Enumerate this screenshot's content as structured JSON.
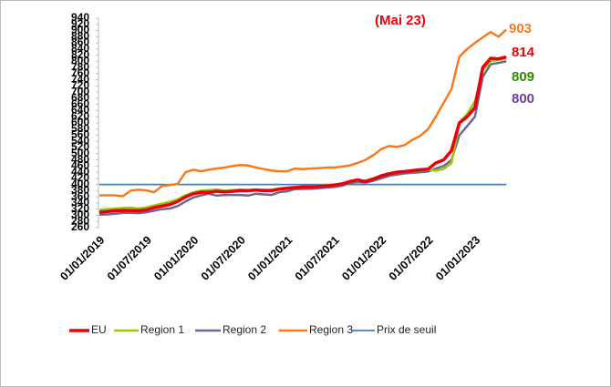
{
  "chart_data": {
    "type": "line",
    "categories": [
      "01/01/2019",
      null,
      null,
      null,
      null,
      null,
      "01/07/2019",
      null,
      null,
      null,
      null,
      null,
      "01/01/2020",
      null,
      null,
      null,
      null,
      null,
      "01/07/2020",
      null,
      null,
      null,
      null,
      null,
      "01/01/2021",
      null,
      null,
      null,
      null,
      null,
      "01/07/2021",
      null,
      null,
      null,
      null,
      null,
      "01/01/2022",
      null,
      null,
      null,
      null,
      null,
      "01/07/2022",
      null,
      null,
      null,
      null,
      null,
      "01/01/2023",
      null,
      null,
      null,
      null
    ],
    "series": [
      {
        "name": "EU",
        "color": "#e8000b",
        "width": 3.5,
        "values": [
          310,
          312,
          315,
          316,
          316,
          315,
          318,
          325,
          330,
          335,
          345,
          360,
          370,
          375,
          375,
          378,
          376,
          378,
          380,
          380,
          382,
          380,
          380,
          385,
          388,
          390,
          392,
          392,
          394,
          395,
          398,
          402,
          410,
          415,
          410,
          418,
          428,
          435,
          440,
          442,
          445,
          448,
          450,
          470,
          480,
          510,
          600,
          620,
          650,
          780,
          810,
          808,
          814
        ]
      },
      {
        "name": "Region 1",
        "color": "#99cc00",
        "width": 2.5,
        "values": [
          318,
          320,
          322,
          324,
          325,
          322,
          326,
          332,
          338,
          344,
          352,
          365,
          375,
          380,
          382,
          384,
          380,
          382,
          384,
          382,
          384,
          383,
          383,
          387,
          390,
          392,
          394,
          394,
          396,
          397,
          400,
          404,
          408,
          412,
          412,
          420,
          430,
          436,
          440,
          442,
          444,
          446,
          448,
          445,
          450,
          470,
          600,
          630,
          670,
          770,
          800,
          805,
          809
        ]
      },
      {
        "name": "Region 2",
        "color": "#6f6596",
        "width": 2.5,
        "values": [
          302,
          303,
          305,
          308,
          308,
          307,
          310,
          315,
          320,
          322,
          330,
          345,
          358,
          365,
          370,
          364,
          366,
          366,
          366,
          364,
          370,
          368,
          366,
          375,
          378,
          385,
          386,
          386,
          388,
          390,
          392,
          396,
          404,
          408,
          406,
          412,
          420,
          428,
          432,
          436,
          438,
          440,
          442,
          452,
          460,
          480,
          560,
          590,
          620,
          750,
          790,
          795,
          800
        ]
      },
      {
        "name": "Region 3",
        "color": "#f47b20",
        "width": 2.5,
        "values": [
          365,
          365,
          365,
          362,
          380,
          383,
          381,
          375,
          395,
          398,
          402,
          440,
          448,
          443,
          448,
          452,
          455,
          460,
          463,
          462,
          455,
          450,
          445,
          443,
          443,
          452,
          450,
          452,
          453,
          455,
          455,
          458,
          462,
          470,
          480,
          495,
          515,
          525,
          522,
          528,
          545,
          558,
          580,
          620,
          665,
          710,
          815,
          840,
          860,
          878,
          895,
          880,
          903
        ]
      },
      {
        "name": "Prix de seuil",
        "color": "#4a7ebb",
        "width": 1.8,
        "values": [
          400,
          400,
          400,
          400,
          400,
          400,
          400,
          400,
          400,
          400,
          400,
          400,
          400,
          400,
          400,
          400,
          400,
          400,
          400,
          400,
          400,
          400,
          400,
          400,
          400,
          400,
          400,
          400,
          400,
          400,
          400,
          400,
          400,
          400,
          400,
          400,
          400,
          400,
          400,
          400,
          400,
          400,
          400,
          400,
          400,
          400,
          400,
          400,
          400,
          400,
          400,
          400,
          400
        ]
      }
    ],
    "ylim": [
      260,
      940
    ],
    "yticks": [
      260,
      280,
      300,
      320,
      340,
      360,
      380,
      400,
      420,
      440,
      460,
      480,
      500,
      520,
      540,
      560,
      580,
      600,
      620,
      640,
      660,
      680,
      700,
      720,
      740,
      760,
      780,
      800,
      820,
      840,
      860,
      880,
      900,
      920,
      940
    ],
    "annotations": [
      {
        "text": "(Mai 23)",
        "color": "#e8000b"
      },
      {
        "text": "903",
        "color": "#f47b20"
      },
      {
        "text": "814",
        "color": "#e8000b"
      },
      {
        "text": "809",
        "color": "#2e8b00"
      },
      {
        "text": "800",
        "color": "#6f3fa0"
      }
    ],
    "legend": "bottom"
  }
}
